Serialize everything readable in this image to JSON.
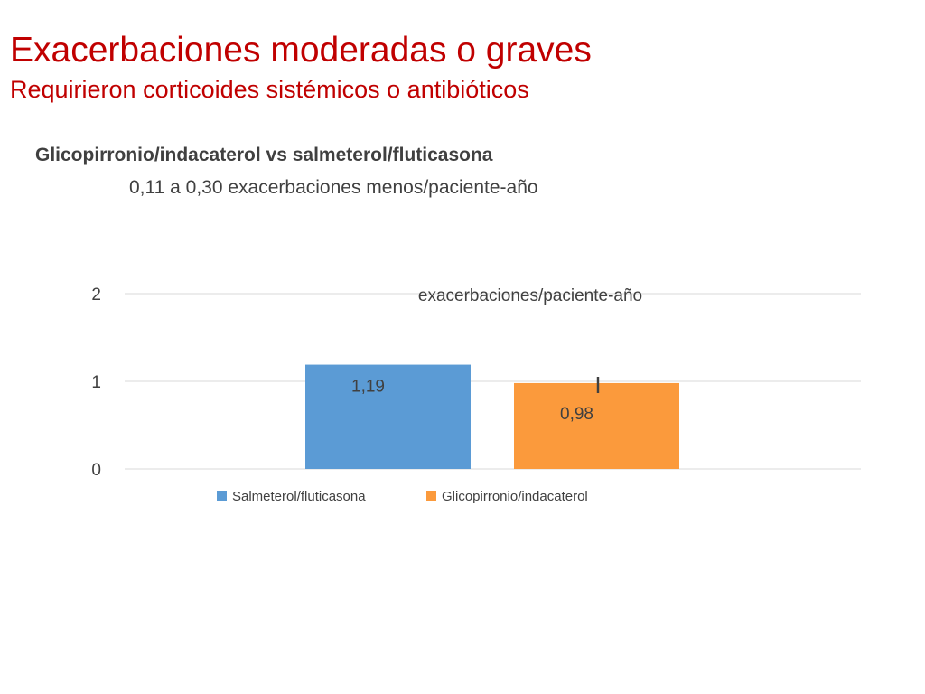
{
  "slide": {
    "title": "Exacerbaciones moderadas o graves",
    "subtitle": "Requirieron corticoides sistémicos o antibióticos",
    "comparison_heading": "Glicopirronio/indacaterol vs salmeterol/fluticasona",
    "comparison_range": "0,11 a 0,30 exacerbaciones menos/paciente-año"
  },
  "colors": {
    "title": "#c00000",
    "text": "#404040",
    "series_1": "#5b9bd5",
    "series_2": "#fb9a3c",
    "gridline": "#d9d9d9"
  },
  "chart_data": {
    "type": "bar",
    "title": "exacerbaciones/paciente-año",
    "series": [
      {
        "name": "Salmeterol/fluticasona",
        "value": 1.19,
        "label": "1,19",
        "color": "#5b9bd5"
      },
      {
        "name": "Glicopirronio/indacaterol",
        "value": 0.98,
        "label": "0,98",
        "color": "#fb9a3c"
      }
    ],
    "yticks": [
      0,
      1,
      2
    ],
    "ylim": [
      0,
      2
    ],
    "grid": true,
    "legend_position": "bottom",
    "annotation": "I"
  }
}
